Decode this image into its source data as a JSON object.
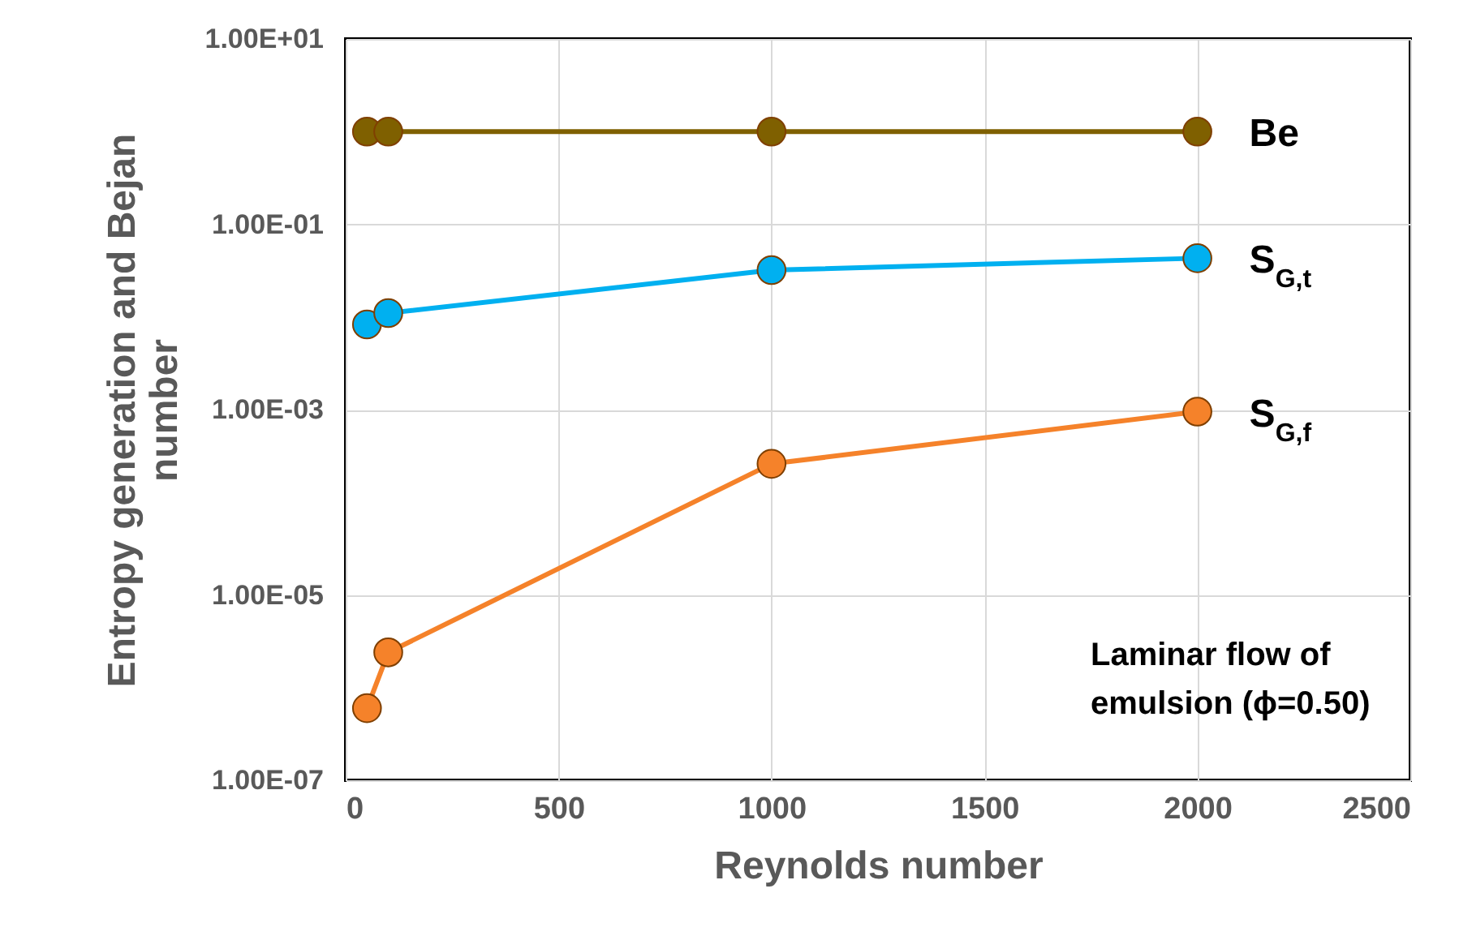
{
  "chart_data": {
    "type": "line",
    "xlabel": "Reynolds number",
    "ylabel": "Entropy generation and Bejan\nnumber",
    "x": [
      50,
      100,
      1000,
      2000
    ],
    "series": [
      {
        "name": "Be",
        "color": "#7f6000",
        "values": [
          1.0,
          1.0,
          1.0,
          1.0
        ]
      },
      {
        "name": "S$_{G,t}$",
        "color": "#00b0f0",
        "values": [
          0.0083,
          0.011,
          0.032,
          0.043
        ]
      },
      {
        "name": "S$_{G,f}$",
        "color": "#f5822a",
        "values": [
          6e-07,
          2.4e-06,
          0.00026,
          0.00095
        ]
      }
    ],
    "xlim": [
      0,
      2500
    ],
    "xticks": [
      0,
      500,
      1000,
      1500,
      2000,
      2500
    ],
    "ylim": [
      1e-07,
      10
    ],
    "yticks": [
      {
        "value": 1e-07,
        "label": "1.00E-07"
      },
      {
        "value": 1e-05,
        "label": "1.00E-05"
      },
      {
        "value": 0.001,
        "label": "1.00E-03"
      },
      {
        "value": 0.1,
        "label": "1.00E-01"
      },
      {
        "value": 10,
        "label": "1.00E+01"
      }
    ],
    "log": "y",
    "grid": true,
    "legend": false,
    "marker": "circle",
    "line_style": "solid",
    "annotations": [
      "Laminar flow of\nemulsion (ϕ=0.50)"
    ]
  }
}
